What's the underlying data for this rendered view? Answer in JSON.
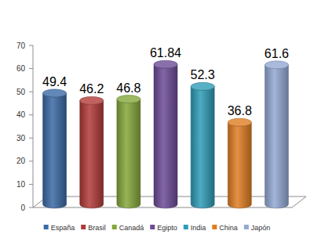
{
  "chart_data": {
    "type": "bar",
    "categories": [
      "España",
      "Brasil",
      "Canadá",
      "Egipto",
      "India",
      "China",
      "Japón"
    ],
    "values": [
      49.4,
      46.2,
      46.8,
      61.84,
      52.3,
      36.8,
      61.6
    ],
    "colors": [
      "#3b6aa6",
      "#b13b38",
      "#85a73a",
      "#6d4b98",
      "#2e9cb7",
      "#e07d22",
      "#93a9d4"
    ],
    "ylim": [
      0,
      70
    ],
    "yticks": [
      0,
      10,
      20,
      30,
      40,
      50,
      60,
      70
    ],
    "grid": false,
    "data_labels": true,
    "legend": "bottom",
    "tick_labels": "y"
  }
}
